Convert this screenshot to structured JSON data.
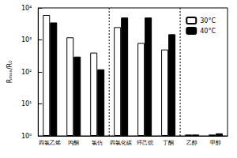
{
  "chart_data": {
    "type": "bar",
    "log": "y",
    "y_label": "Rₘₐₓ/R₀",
    "categories": [
      "四氯乙烯",
      "丙酮",
      "氯仿",
      "四氯化碳",
      "环己烷",
      "丁酮",
      "乙醇",
      "甲醇"
    ],
    "series": [
      {
        "name": "30°C",
        "color": "#ffffff",
        "values": [
          6000,
          1200,
          400,
          2500,
          800,
          500,
          1.1,
          1.1
        ]
      },
      {
        "name": "40°C",
        "color": "#000000",
        "values": [
          3500,
          300,
          120,
          5000,
          5000,
          1500,
          1.1,
          1.2
        ]
      }
    ],
    "ylim": [
      1,
      10000
    ],
    "yticks": [
      {
        "value": 1,
        "label": "10⁰"
      },
      {
        "value": 10,
        "label": "10¹"
      },
      {
        "value": 100,
        "label": "10²"
      },
      {
        "value": 1000,
        "label": "10³"
      },
      {
        "value": 10000,
        "label": "10⁴"
      }
    ],
    "grid": false,
    "legend": "upper right"
  }
}
